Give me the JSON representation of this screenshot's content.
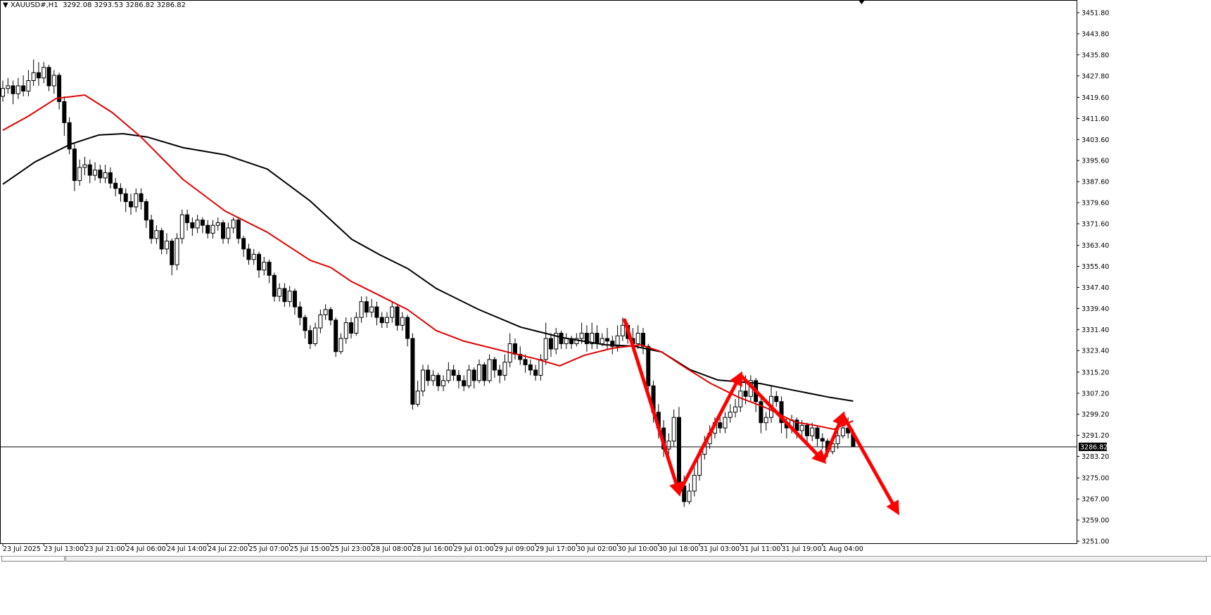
{
  "header": {
    "symbol": "XAUUSD#,H1",
    "ohlc": "3292.08 3293.53 3286.82 3286.82"
  },
  "chart_data": {
    "type": "candlestick",
    "title": "XAUUSD#,H1",
    "ylim": [
      3251.0,
      3451.8
    ],
    "y_ticks": [
      "3451.80",
      "3443.80",
      "3435.80",
      "3427.80",
      "3419.60",
      "3411.60",
      "3403.60",
      "3395.60",
      "3387.60",
      "3379.60",
      "3371.60",
      "3363.40",
      "3355.40",
      "3347.40",
      "3339.40",
      "3331.40",
      "3323.40",
      "3315.20",
      "3307.20",
      "3299.20",
      "3291.20",
      "3283.20",
      "3275.00",
      "3267.00",
      "3259.00",
      "3251.00"
    ],
    "x_ticks": [
      "23 Jul 2025",
      "23 Jul 13:00",
      "23 Jul 21:00",
      "24 Jul 06:00",
      "24 Jul 14:00",
      "24 Jul 22:00",
      "25 Jul 07:00",
      "25 Jul 15:00",
      "25 Jul 23:00",
      "28 Jul 08:00",
      "28 Jul 16:00",
      "29 Jul 01:00",
      "29 Jul 09:00",
      "29 Jul 17:00",
      "30 Jul 02:00",
      "30 Jul 10:00",
      "30 Jul 18:00",
      "31 Jul 03:00",
      "31 Jul 11:00",
      "31 Jul 19:00",
      "1 Aug 04:00"
    ],
    "x_tick_every_bars": 8,
    "current_price": "3286.82",
    "colors": {
      "bull": "#ffffff",
      "bear": "#000000",
      "ma_fast": "#e00000",
      "ma_slow": "#000000",
      "arrows": "#ff0000"
    },
    "candles": {
      "first_open": 3420,
      "close": [
        3423,
        3424,
        3421,
        3424,
        3422,
        3426,
        3429,
        3427,
        3431,
        3424,
        3428,
        3418,
        3410,
        3400,
        3388,
        3393,
        3394,
        3390,
        3392,
        3389,
        3391,
        3387,
        3385,
        3383,
        3380,
        3378,
        3383,
        3380,
        3373,
        3366,
        3369,
        3362,
        3365,
        3356,
        3366,
        3375,
        3372,
        3370,
        3373,
        3371,
        3368,
        3371,
        3372,
        3366,
        3370,
        3373,
        3366,
        3362,
        3358,
        3360,
        3354,
        3357,
        3352,
        3344,
        3347,
        3342,
        3346,
        3340,
        3336,
        3331,
        3326,
        3332,
        3337,
        3339,
        3335,
        3323,
        3328,
        3334,
        3330,
        3336,
        3342,
        3338,
        3340,
        3336,
        3334,
        3336,
        3340,
        3333,
        3336,
        3328,
        3303,
        3308,
        3316,
        3312,
        3314,
        3310,
        3312,
        3316,
        3314,
        3312,
        3310,
        3316,
        3312,
        3318,
        3312,
        3320,
        3316,
        3314,
        3319,
        3326,
        3322,
        3320,
        3318,
        3316,
        3314,
        3320,
        3328,
        3324,
        3330,
        3326,
        3328,
        3326,
        3328,
        3330,
        3326,
        3330,
        3326,
        3328,
        3327,
        3325,
        3329,
        3333,
        3328,
        3326,
        3330,
        3325,
        3310,
        3300,
        3294,
        3286,
        3289,
        3298,
        3272,
        3266,
        3270,
        3276,
        3284,
        3288,
        3292,
        3296,
        3294,
        3298,
        3300,
        3302,
        3308,
        3306,
        3312,
        3304,
        3296,
        3298,
        3306,
        3304,
        3296,
        3294,
        3297,
        3293,
        3295,
        3291,
        3294,
        3290,
        3289,
        3285,
        3288,
        3291,
        3294,
        3292.08,
        3286.82
      ],
      "high": [
        3426,
        3427,
        3426,
        3427,
        3428,
        3430,
        3434,
        3433,
        3433,
        3432,
        3430,
        3429,
        3420,
        3412,
        3402,
        3396,
        3397,
        3396,
        3395,
        3394,
        3394,
        3393,
        3389,
        3387,
        3385,
        3383,
        3385,
        3385,
        3381,
        3375,
        3371,
        3370,
        3368,
        3366,
        3368,
        3377,
        3377,
        3374,
        3375,
        3374,
        3373,
        3373,
        3374,
        3373,
        3372,
        3374,
        3374,
        3367,
        3364,
        3362,
        3361,
        3359,
        3358,
        3353,
        3349,
        3349,
        3348,
        3347,
        3342,
        3337,
        3333,
        3334,
        3339,
        3341,
        3340,
        3336,
        3330,
        3336,
        3336,
        3338,
        3344,
        3344,
        3343,
        3342,
        3338,
        3338,
        3342,
        3341,
        3338,
        3337,
        3330,
        3312,
        3318,
        3318,
        3316,
        3315,
        3314,
        3319,
        3318,
        3316,
        3314,
        3318,
        3317,
        3320,
        3319,
        3322,
        3321,
        3318,
        3322,
        3330,
        3328,
        3325,
        3322,
        3320,
        3318,
        3322,
        3334,
        3330,
        3332,
        3331,
        3330,
        3329,
        3330,
        3334,
        3333,
        3334,
        3333,
        3330,
        3332,
        3329,
        3333,
        3336,
        3334,
        3332,
        3333,
        3332,
        3326,
        3312,
        3303,
        3297,
        3292,
        3301,
        3302,
        3276,
        3273,
        3279,
        3286,
        3291,
        3295,
        3298,
        3299,
        3300,
        3303,
        3305,
        3311,
        3314,
        3314,
        3313,
        3306,
        3300,
        3310,
        3308,
        3306,
        3298,
        3299,
        3298,
        3297,
        3296,
        3296,
        3295,
        3292,
        3290,
        3290,
        3293,
        3297,
        3298,
        3293.53
      ],
      "low": [
        3418,
        3421,
        3417,
        3419,
        3420,
        3420,
        3424,
        3424,
        3425,
        3422,
        3421,
        3415,
        3405,
        3398,
        3384,
        3386,
        3390,
        3387,
        3388,
        3387,
        3387,
        3385,
        3382,
        3380,
        3376,
        3375,
        3376,
        3377,
        3370,
        3364,
        3364,
        3360,
        3360,
        3352,
        3354,
        3364,
        3369,
        3367,
        3368,
        3368,
        3366,
        3366,
        3369,
        3364,
        3364,
        3368,
        3364,
        3359,
        3356,
        3356,
        3351,
        3352,
        3349,
        3342,
        3342,
        3340,
        3340,
        3337,
        3333,
        3328,
        3324,
        3325,
        3330,
        3335,
        3333,
        3321,
        3322,
        3326,
        3328,
        3329,
        3334,
        3336,
        3336,
        3333,
        3332,
        3332,
        3334,
        3331,
        3331,
        3325,
        3301,
        3302,
        3306,
        3310,
        3310,
        3308,
        3308,
        3311,
        3312,
        3309,
        3308,
        3309,
        3309,
        3311,
        3310,
        3311,
        3313,
        3311,
        3312,
        3317,
        3320,
        3318,
        3315,
        3314,
        3312,
        3312,
        3318,
        3321,
        3322,
        3324,
        3324,
        3324,
        3325,
        3326,
        3323,
        3324,
        3324,
        3325,
        3324,
        3322,
        3323,
        3327,
        3326,
        3323,
        3324,
        3322,
        3306,
        3296,
        3290,
        3283,
        3284,
        3287,
        3270,
        3264,
        3265,
        3268,
        3274,
        3282,
        3286,
        3290,
        3292,
        3292,
        3296,
        3298,
        3300,
        3303,
        3304,
        3300,
        3292,
        3293,
        3296,
        3302,
        3292,
        3290,
        3292,
        3290,
        3290,
        3288,
        3289,
        3287,
        3286,
        3283,
        3284,
        3286,
        3290,
        3290,
        3286.82
      ]
    },
    "ma_fast": [
      [
        0,
        3407.1
      ],
      [
        5,
        3412.5
      ],
      [
        10.4,
        3419.2
      ],
      [
        16,
        3420.5
      ],
      [
        21.4,
        3413.8
      ],
      [
        27,
        3404.5
      ],
      [
        35.2,
        3388.4
      ],
      [
        43.4,
        3376.4
      ],
      [
        51.6,
        3368.4
      ],
      [
        60,
        3357.7
      ],
      [
        64,
        3355
      ],
      [
        68,
        3349.7
      ],
      [
        73.6,
        3344.3
      ],
      [
        79,
        3339
      ],
      [
        84.6,
        3331
      ],
      [
        90,
        3327
      ],
      [
        98.4,
        3322.9
      ],
      [
        104,
        3320.3
      ],
      [
        108.7,
        3317.6
      ],
      [
        113.5,
        3321.6
      ],
      [
        119,
        3324.3
      ],
      [
        124.5,
        3325.6
      ],
      [
        128.6,
        3322.9
      ],
      [
        132.7,
        3317.6
      ],
      [
        138.2,
        3310.9
      ],
      [
        143.7,
        3305.6
      ],
      [
        149.2,
        3301.5
      ],
      [
        154.7,
        3296.2
      ],
      [
        158.8,
        3294.9
      ],
      [
        162.2,
        3293.5
      ],
      [
        166,
        3296.7
      ]
    ],
    "ma_slow": [
      [
        0,
        3386.6
      ],
      [
        6.3,
        3395.1
      ],
      [
        13.2,
        3401.8
      ],
      [
        18.7,
        3405.3
      ],
      [
        23.5,
        3405.8
      ],
      [
        28.3,
        3404.5
      ],
      [
        35.2,
        3400.5
      ],
      [
        43.4,
        3397.8
      ],
      [
        51.6,
        3392.4
      ],
      [
        59.9,
        3380.4
      ],
      [
        68.1,
        3365.7
      ],
      [
        73.6,
        3359.8
      ],
      [
        79.1,
        3354.5
      ],
      [
        84.6,
        3347
      ],
      [
        92.9,
        3339
      ],
      [
        101.1,
        3332.3
      ],
      [
        109.3,
        3328.3
      ],
      [
        117.6,
        3325.6
      ],
      [
        123.1,
        3325.1
      ],
      [
        128.6,
        3322.9
      ],
      [
        134.1,
        3316.2
      ],
      [
        139.6,
        3312.2
      ],
      [
        147.8,
        3310.9
      ],
      [
        154.7,
        3308.2
      ],
      [
        161.5,
        3305.6
      ],
      [
        166,
        3304.2
      ]
    ],
    "arrows": [
      [
        121.4,
        3335
      ],
      [
        132,
        3269.4
      ],
      [
        144,
        3314.1
      ],
      [
        160.2,
        3281.5
      ],
      [
        164,
        3298.9
      ],
      [
        174.6,
        3262.2
      ]
    ]
  }
}
